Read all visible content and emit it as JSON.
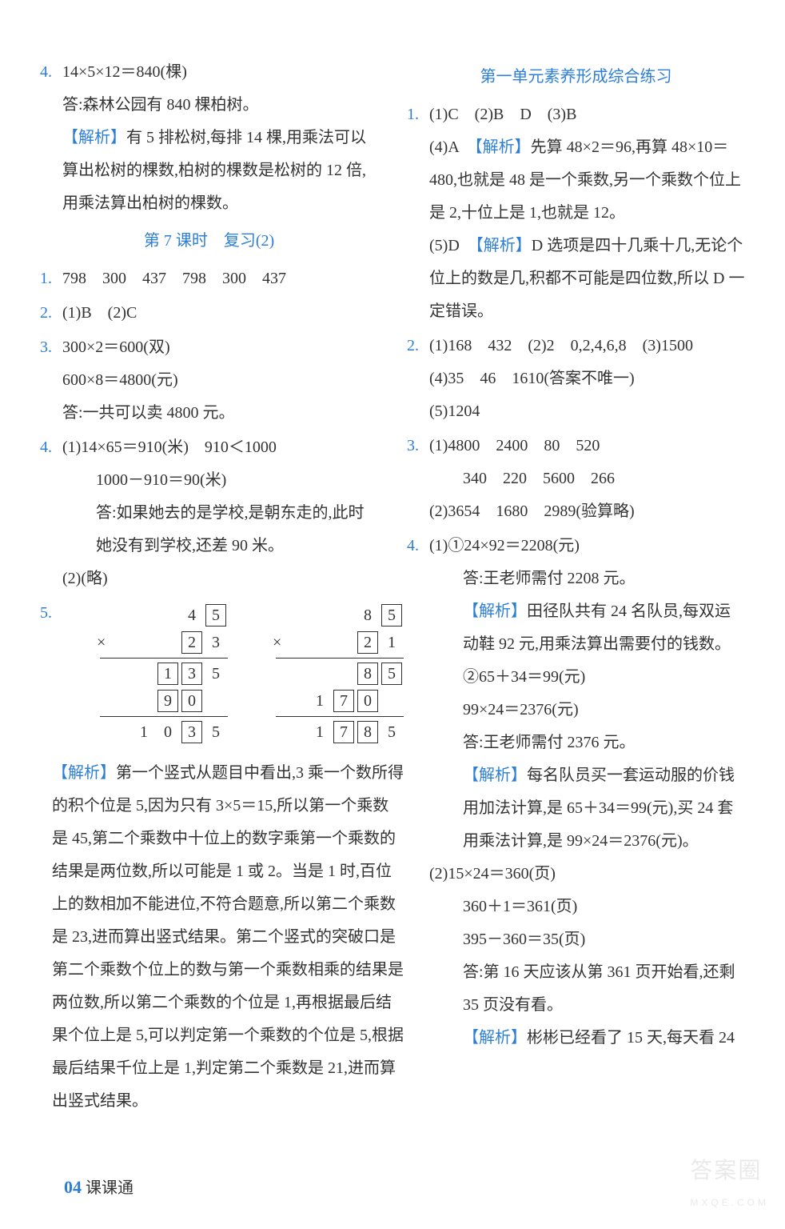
{
  "colors": {
    "blue": "#2d7fd6",
    "text": "#333333",
    "bg": "#ffffff",
    "watermark": "#dcdcdc"
  },
  "typography": {
    "body_fontsize": 20,
    "line_height": 2.05,
    "font_family": "SimSun / Songti"
  },
  "left": {
    "q4": {
      "num": "4.",
      "l1": "14×5×12＝840(棵)",
      "l2": "答:森林公园有 840 棵柏树。",
      "l3": "【解析】",
      "l3b": "有 5 排松树,每排 14 棵,用乘法可以算出松树的棵数,柏树的棵数是松树的 12 倍,用乘法算出柏树的棵数。"
    },
    "title7": "第 7 课时　复习(2)",
    "q1": {
      "num": "1.",
      "l1": "798　300　437　798　300　437"
    },
    "q2": {
      "num": "2.",
      "l1": "(1)B　(2)C"
    },
    "q3": {
      "num": "3.",
      "l1": "300×2＝600(双)",
      "l2": "600×8＝4800(元)",
      "l3": "答:一共可以卖 4800 元。"
    },
    "q4b": {
      "num": "4.",
      "l1": "(1)14×65＝910(米)　910＜1000",
      "l2": "1000－910＝90(米)",
      "l3": "答:如果她去的是学校,是朝东走的,此时她没有到学校,还差 90 米。",
      "l4": "(2)(略)"
    },
    "q5": {
      "num": "5.",
      "mul1": {
        "r1": [
          "",
          "",
          "4",
          "5"
        ],
        "r1box": [
          false,
          false,
          false,
          true
        ],
        "r2": [
          "×",
          "",
          "2",
          "3"
        ],
        "r2box": [
          false,
          false,
          true,
          false
        ],
        "r3": [
          "",
          "1",
          "3",
          "5"
        ],
        "r3box": [
          false,
          true,
          true,
          false
        ],
        "r4": [
          "",
          "9",
          "0",
          ""
        ],
        "r4box": [
          false,
          true,
          true,
          false
        ],
        "r5": [
          "1",
          "0",
          "3",
          "5"
        ],
        "r5box": [
          false,
          false,
          true,
          false
        ]
      },
      "mul2": {
        "r1": [
          "",
          "",
          "8",
          "5"
        ],
        "r1box": [
          false,
          false,
          false,
          true
        ],
        "r2": [
          "×",
          "",
          "2",
          "1"
        ],
        "r2box": [
          false,
          false,
          true,
          false
        ],
        "r3": [
          "",
          "",
          "8",
          "5"
        ],
        "r3box": [
          false,
          false,
          true,
          true
        ],
        "r4": [
          "1",
          "7",
          "0",
          ""
        ],
        "r4box": [
          false,
          true,
          true,
          false
        ],
        "r5": [
          "1",
          "7",
          "8",
          "5"
        ],
        "r5box": [
          false,
          true,
          true,
          false
        ]
      },
      "expl_tag": "【解析】",
      "expl": "第一个竖式从题目中看出,3 乘一个数所得的积个位是 5,因为只有 3×5＝15,所以第一个乘数是 45,第二个乘数中十位上的数字乘第一个乘数的结果是两位数,所以可能是 1 或 2。当是 1 时,百位上的数相加不能进位,不符合题意,所以第二个乘数是 23,进而算出竖式结果。第二个竖式的突破口是第二个乘数个位上的数与第一个乘数相乘的结果是两位数,所以第二个乘数的个位是 1,再根据最后结果个位上是 5,可以判定第一个乘数的个位是 5,根据最后结果千位上是 1,判定第二个乘数是 21,进而算出竖式结果。"
    }
  },
  "right": {
    "title": "第一单元素养形成综合练习",
    "q1": {
      "num": "1.",
      "l1": "(1)C　(2)B　D　(3)B",
      "l2a": "(4)A　",
      "l2tag": "【解析】",
      "l2b": "先算 48×2＝96,再算 48×10＝480,也就是 48 是一个乘数,另一个乘数个位上是 2,十位上是 1,也就是 12。",
      "l3a": "(5)D　",
      "l3tag": "【解析】",
      "l3b": "D 选项是四十几乘十几,无论个位上的数是几,积都不可能是四位数,所以 D 一定错误。"
    },
    "q2": {
      "num": "2.",
      "l1": "(1)168　432　(2)2　0,2,4,6,8　(3)1500",
      "l2": "(4)35　46　1610(答案不唯一)",
      "l3": "(5)1204"
    },
    "q3": {
      "num": "3.",
      "l1": "(1)4800　2400　80　520",
      "l2": "340　220　5600　266",
      "l3": "(2)3654　1680　2989(验算略)"
    },
    "q4": {
      "num": "4.",
      "l1": "(1)①24×92＝2208(元)",
      "l2": "答:王老师需付 2208 元。",
      "l3tag": "【解析】",
      "l3": "田径队共有 24 名队员,每双运动鞋 92 元,用乘法算出需要付的钱数。",
      "l4": "②65＋34＝99(元)",
      "l5": "99×24＝2376(元)",
      "l6": "答:王老师需付 2376 元。",
      "l7tag": "【解析】",
      "l7": "每名队员买一套运动服的价钱用加法计算,是 65＋34＝99(元),买 24 套用乘法计算,是 99×24＝2376(元)。",
      "l8": "(2)15×24＝360(页)",
      "l9": "360＋1＝361(页)",
      "l10": "395－360＝35(页)",
      "l11": "答:第 16 天应该从第 361 页开始看,还剩35 页没有看。",
      "l12tag": "【解析】",
      "l12": "彬彬已经看了 15 天,每天看 24"
    }
  },
  "footer": {
    "page": "04",
    "label": "课课通"
  },
  "watermark": {
    "main": "答案圈",
    "sub": "MXQE.COM"
  }
}
